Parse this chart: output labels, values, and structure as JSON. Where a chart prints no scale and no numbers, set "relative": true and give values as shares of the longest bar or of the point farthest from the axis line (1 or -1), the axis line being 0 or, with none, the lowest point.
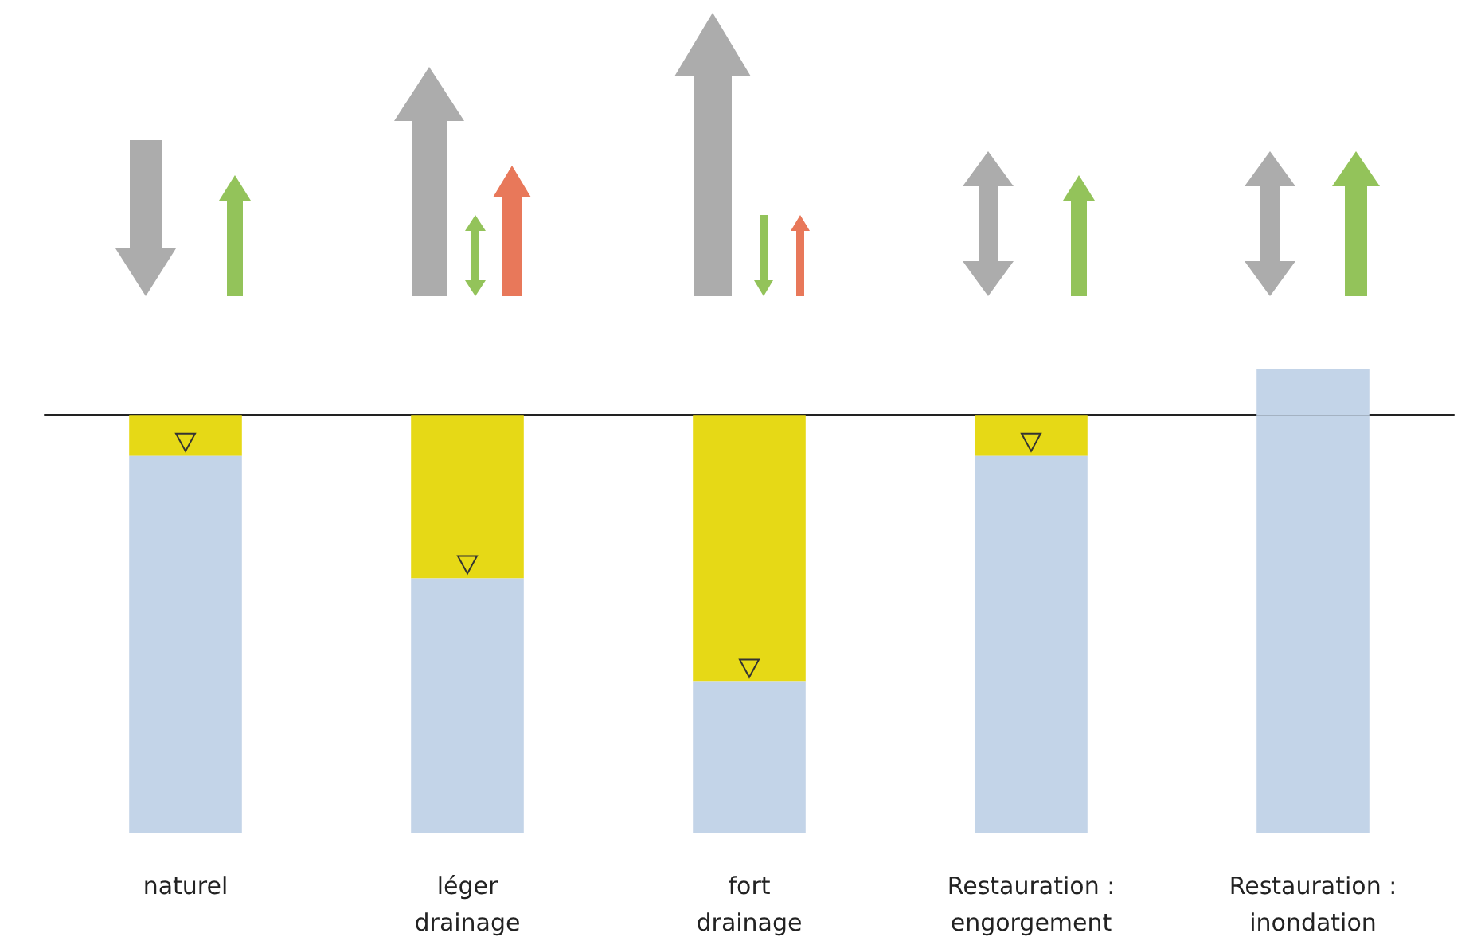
{
  "chart_data": {
    "type": "bar",
    "relative": true,
    "stacked": true,
    "categories": [
      "naturel",
      "léger drainage",
      "fort drainage",
      "Restauration : engorgement",
      "Restauration : inondation"
    ],
    "series": [
      {
        "color": "#e6d916",
        "values": [
          -0.098,
          -0.391,
          -0.639,
          -0.098,
          null
        ]
      },
      {
        "color": "#c3d4e8",
        "values": [
          -0.902,
          -0.609,
          -0.361,
          -0.902,
          -1
        ]
      },
      {
        "color": "#c3d4e8",
        "values": [
          null,
          null,
          null,
          null,
          0.109
        ]
      }
    ]
  }
}
